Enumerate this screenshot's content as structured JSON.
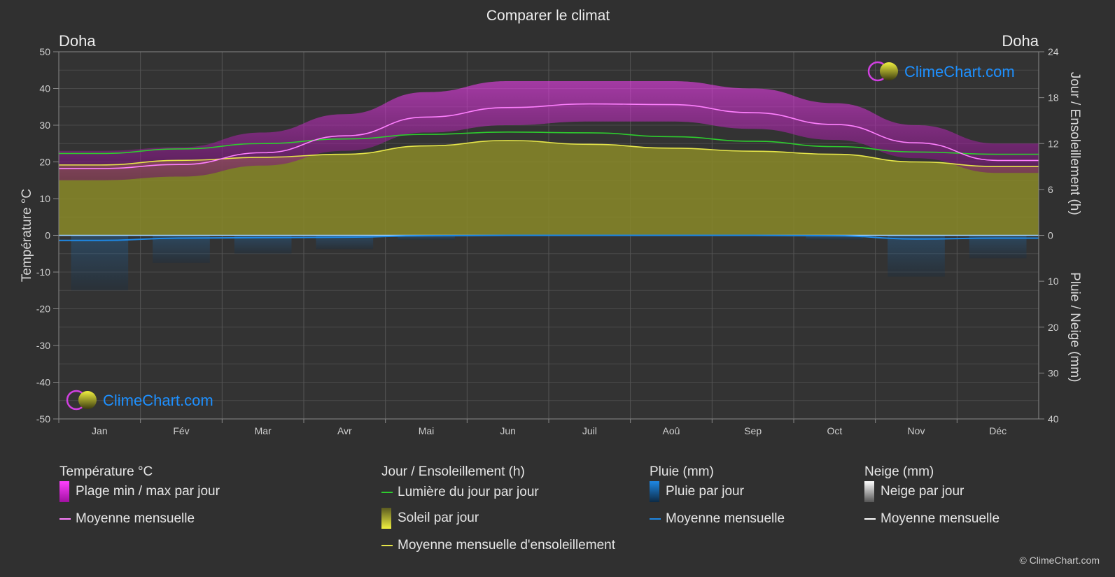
{
  "title": "Comparer le climat",
  "location_left": "Doha",
  "location_right": "Doha",
  "watermark": "ClimeChart.com",
  "copyright": "© ClimeChart.com",
  "colors": {
    "background": "#303030",
    "temp_range": "#e020e0",
    "temp_mean": "#ff80ff",
    "daylight": "#2ecc2e",
    "sunshine_fill": "#8c8c2a",
    "sunshine_mean": "#e6e64a",
    "rain": "#1e88e5",
    "snow": "#ffffff",
    "brand": "#1e90ff"
  },
  "chart_data": {
    "type": "area",
    "title": "Comparer le climat",
    "categories": [
      "Jan",
      "Fév",
      "Mar",
      "Avr",
      "Mai",
      "Jun",
      "Juil",
      "Aoû",
      "Sep",
      "Oct",
      "Nov",
      "Déc"
    ],
    "y_left": {
      "label": "Température °C",
      "range": [
        -50,
        50
      ],
      "ticks": [
        50,
        40,
        30,
        20,
        10,
        0,
        -10,
        -20,
        -30,
        -40,
        -50
      ]
    },
    "y_right_top": {
      "label": "Jour / Ensoleillement (h)",
      "range": [
        0,
        24
      ],
      "ticks": [
        24,
        18,
        12,
        6,
        0
      ]
    },
    "y_right_bottom": {
      "label": "Pluie / Neige (mm)",
      "range": [
        0,
        40
      ],
      "ticks": [
        10,
        20,
        30,
        40
      ]
    },
    "grid": true,
    "series": [
      {
        "name": "Plage min / max par jour",
        "kind": "band",
        "axis": "temperature",
        "min": [
          15,
          16,
          19,
          23,
          28,
          30,
          31,
          31,
          29,
          26,
          21,
          17
        ],
        "max": [
          23,
          24,
          28,
          33,
          39,
          42,
          42,
          42,
          40,
          36,
          30,
          25
        ]
      },
      {
        "name": "Moyenne mensuelle",
        "kind": "line",
        "axis": "temperature",
        "values": [
          18.2,
          19.3,
          22.5,
          27.1,
          32.2,
          34.8,
          35.8,
          35.6,
          33.4,
          30.2,
          25.2,
          20.4
        ]
      },
      {
        "name": "Lumière du jour par jour",
        "kind": "line",
        "axis": "hours",
        "values": [
          10.7,
          11.3,
          12.0,
          12.6,
          13.2,
          13.5,
          13.4,
          12.9,
          12.3,
          11.6,
          10.9,
          10.6
        ]
      },
      {
        "name": "Soleil par jour",
        "kind": "area",
        "axis": "hours",
        "values": [
          9.2,
          9.8,
          10.2,
          10.6,
          11.7,
          12.4,
          11.9,
          11.4,
          11.0,
          10.6,
          9.6,
          9.0
        ]
      },
      {
        "name": "Moyenne mensuelle d'ensoleillement",
        "kind": "line",
        "axis": "hours",
        "values": [
          9.2,
          9.8,
          10.2,
          10.6,
          11.7,
          12.4,
          11.9,
          11.4,
          11.0,
          10.6,
          9.6,
          9.0
        ]
      },
      {
        "name": "Pluie par jour",
        "kind": "bars",
        "axis": "precipitation",
        "values": [
          12,
          6,
          4,
          3,
          1,
          0,
          0,
          0,
          0,
          1,
          9,
          5
        ]
      },
      {
        "name": "Moyenne mensuelle",
        "kind": "line",
        "axis": "precipitation",
        "values": [
          1.1,
          0.6,
          0.5,
          0.4,
          0.1,
          0,
          0,
          0,
          0,
          0.1,
          0.8,
          0.6
        ]
      }
    ]
  },
  "legend": {
    "groups": [
      {
        "title": "Température °C",
        "items": [
          {
            "label": "Plage min / max par jour",
            "style": "box",
            "color": "#e020e0"
          },
          {
            "label": "Moyenne mensuelle",
            "style": "line",
            "color": "#ff80ff"
          }
        ]
      },
      {
        "title": "Jour / Ensoleillement (h)",
        "items": [
          {
            "label": "Lumière du jour par jour",
            "style": "line",
            "color": "#2ecc2e"
          },
          {
            "label": "Soleil par jour",
            "style": "box",
            "color": "#c8c832"
          },
          {
            "label": "Moyenne mensuelle d'ensoleillement",
            "style": "line",
            "color": "#e6e64a"
          }
        ]
      },
      {
        "title": "Pluie (mm)",
        "items": [
          {
            "label": "Pluie par jour",
            "style": "box",
            "color": "#1e88e5"
          },
          {
            "label": "Moyenne mensuelle",
            "style": "line",
            "color": "#1e88e5"
          }
        ]
      },
      {
        "title": "Neige (mm)",
        "items": [
          {
            "label": "Neige par jour",
            "style": "box",
            "color": "#dddddd"
          },
          {
            "label": "Moyenne mensuelle",
            "style": "line",
            "color": "#ffffff"
          }
        ]
      }
    ]
  }
}
